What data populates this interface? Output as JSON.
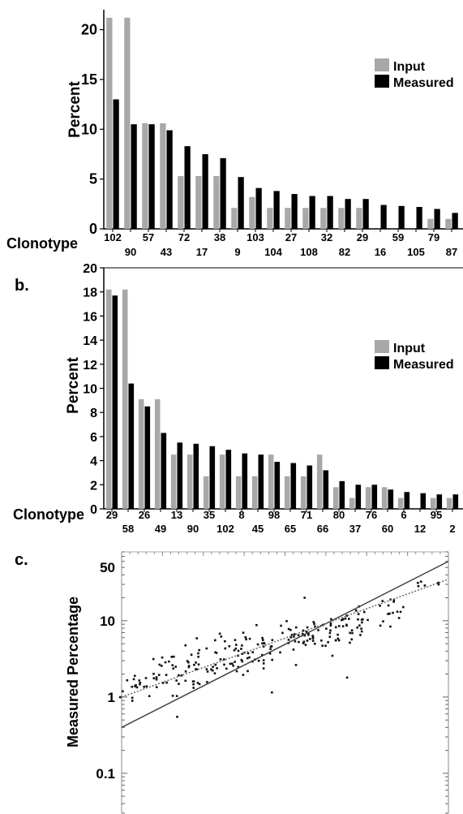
{
  "colors": {
    "input": "#a8a8a8",
    "measured": "#000000",
    "scatter": "#111111"
  },
  "panels": {
    "a": {
      "label": "",
      "ylabel": "Percent",
      "xlabel": "Clonotype",
      "legend": [
        "Input",
        "Measured"
      ]
    },
    "b": {
      "label": "b.",
      "ylabel": "Percent",
      "xlabel": "Clonotype",
      "legend": [
        "Input",
        "Measured"
      ]
    },
    "c": {
      "label": "c.",
      "ylabel": "Measured Percentage"
    }
  },
  "chart_data": [
    {
      "type": "bar",
      "ylabel": "Percent",
      "xlabel": "Clonotype",
      "ylim": [
        0,
        22
      ],
      "yticks": [
        0,
        5,
        10,
        15,
        20
      ],
      "categories": [
        "102",
        "90",
        "57",
        "43",
        "72",
        "17",
        "38",
        "9",
        "103",
        "104",
        "27",
        "108",
        "32",
        "82",
        "29",
        "16",
        "59",
        "105",
        "79",
        "87"
      ],
      "series": [
        {
          "name": "Input",
          "values": [
            21.2,
            21.2,
            10.6,
            10.6,
            5.3,
            5.3,
            5.3,
            2.1,
            3.2,
            2.1,
            2.1,
            2.1,
            2.1,
            2.1,
            2.1,
            0,
            0,
            0,
            1.0,
            1.0
          ]
        },
        {
          "name": "Measured",
          "values": [
            13.0,
            10.5,
            10.5,
            9.9,
            8.3,
            7.5,
            7.1,
            5.2,
            4.1,
            3.8,
            3.5,
            3.3,
            3.3,
            3.0,
            3.0,
            2.4,
            2.3,
            2.2,
            2.0,
            1.6
          ]
        }
      ],
      "legend_position": "right"
    },
    {
      "type": "bar",
      "ylabel": "Percent",
      "xlabel": "Clonotype",
      "ylim": [
        0,
        20
      ],
      "yticks": [
        0,
        2,
        4,
        6,
        8,
        10,
        12,
        14,
        16,
        18,
        20
      ],
      "categories": [
        "29",
        "58",
        "26",
        "49",
        "13",
        "90",
        "35",
        "102",
        "8",
        "45",
        "98",
        "65",
        "71",
        "66",
        "80",
        "37",
        "76",
        "60",
        "6",
        "12",
        "95",
        "2"
      ],
      "series": [
        {
          "name": "Input",
          "values": [
            18.2,
            18.2,
            9.1,
            9.1,
            4.5,
            4.5,
            2.7,
            4.5,
            2.7,
            2.7,
            4.5,
            2.7,
            2.7,
            4.5,
            1.8,
            0.9,
            1.8,
            1.8,
            0.9,
            0,
            0.9,
            0.9
          ]
        },
        {
          "name": "Measured",
          "values": [
            17.7,
            10.4,
            8.5,
            6.3,
            5.5,
            5.4,
            5.2,
            4.9,
            4.6,
            4.5,
            3.9,
            3.8,
            3.6,
            3.2,
            2.3,
            2.0,
            2.0,
            1.6,
            1.4,
            1.3,
            1.2,
            1.2
          ]
        }
      ],
      "legend_position": "right"
    },
    {
      "type": "scatter",
      "ylabel": "Measured Percentage",
      "yscale": "log",
      "ylim": [
        0.03,
        80
      ],
      "yticks": [
        0.1,
        1,
        10,
        50
      ],
      "xlim": [
        0,
        1
      ],
      "fit_lines": [
        {
          "style": "solid",
          "y_at_xmin": 0.4,
          "y_at_xmax": 60
        },
        {
          "style": "dotted",
          "y_at_xmin": 1.0,
          "y_at_xmax": 35
        }
      ],
      "clusters": [
        {
          "x": 0.04,
          "y_center": 1.3,
          "spread": 0.45,
          "n": 18
        },
        {
          "x": 0.14,
          "y_center": 1.9,
          "spread": 0.45,
          "n": 26
        },
        {
          "x": 0.24,
          "y_center": 2.5,
          "spread": 0.45,
          "n": 30
        },
        {
          "x": 0.33,
          "y_center": 3.4,
          "spread": 0.4,
          "n": 34
        },
        {
          "x": 0.42,
          "y_center": 4.3,
          "spread": 0.4,
          "n": 30
        },
        {
          "x": 0.53,
          "y_center": 6.3,
          "spread": 0.35,
          "n": 30
        },
        {
          "x": 0.62,
          "y_center": 7.0,
          "spread": 0.35,
          "n": 28
        },
        {
          "x": 0.71,
          "y_center": 9.0,
          "spread": 0.35,
          "n": 30
        },
        {
          "x": 0.82,
          "y_center": 13.0,
          "spread": 0.3,
          "n": 16
        },
        {
          "x": 0.95,
          "y_center": 30.0,
          "spread": 0.12,
          "n": 6
        }
      ],
      "outliers": [
        {
          "x": 0.17,
          "y": 0.55
        },
        {
          "x": 0.46,
          "y": 1.15
        },
        {
          "x": 0.56,
          "y": 20.0
        },
        {
          "x": 0.69,
          "y": 1.8
        }
      ]
    }
  ]
}
